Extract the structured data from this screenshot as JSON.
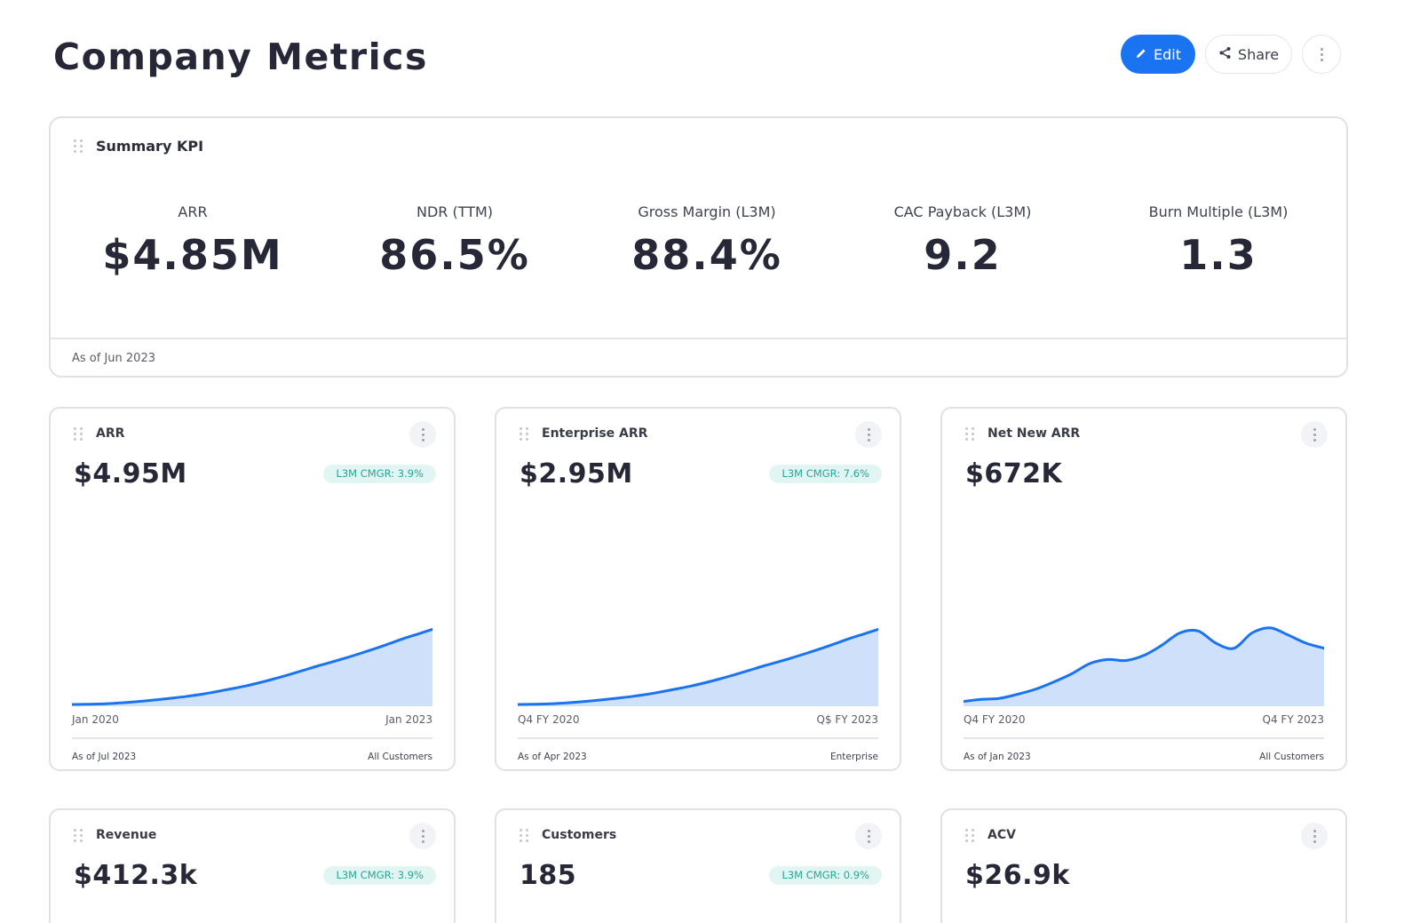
{
  "header": {
    "title": "Company Metrics",
    "edit_label": "Edit",
    "share_label": "Share"
  },
  "summary": {
    "title": "Summary KPI",
    "items": [
      {
        "label": "ARR",
        "value": "$4.85M"
      },
      {
        "label": "NDR (TTM)",
        "value": "86.5%"
      },
      {
        "label": "Gross Margin (L3M)",
        "value": "88.4%"
      },
      {
        "label": "CAC Payback (L3M)",
        "value": "9.2"
      },
      {
        "label": "Burn Multiple (L3M)",
        "value": "1.3"
      }
    ],
    "footer": "As of Jun 2023"
  },
  "cards": [
    {
      "title": "ARR",
      "value": "$4.95M",
      "badge": "L3M CMGR: 3.9%",
      "x_start": "Jan 2020",
      "x_end": "Jan 2023",
      "as_of": "As of Jul 2023",
      "segment": "All Customers"
    },
    {
      "title": "Enterprise ARR",
      "value": "$2.95M",
      "badge": "L3M CMGR: 7.6%",
      "x_start": "Q4 FY 2020",
      "x_end": "Q$ FY 2023",
      "as_of": "As of Apr 2023",
      "segment": "Enterprise"
    },
    {
      "title": "Net New ARR",
      "value": "$672K",
      "badge": "",
      "x_start": "Q4 FY 2020",
      "x_end": "Q4 FY 2023",
      "as_of": "As of Jan 2023",
      "segment": "All Customers"
    },
    {
      "title": "Revenue",
      "value": "$412.3k",
      "badge": "L3M CMGR: 3.9%"
    },
    {
      "title": "Customers",
      "value": "185",
      "badge": "L3M CMGR: 0.9%"
    },
    {
      "title": "ACV",
      "value": "$26.9k",
      "badge": ""
    }
  ],
  "chart_data": [
    {
      "type": "area",
      "series": [
        {
          "values": [
            0,
            0.2,
            0.5,
            1.2,
            2.2,
            3.4,
            4.8,
            6.3,
            8,
            10,
            12.5,
            15.2,
            18,
            21.3,
            25,
            29,
            33.2,
            37.5,
            41.5,
            45.6,
            50,
            54.6,
            59.5,
            64.5,
            69,
            73.5
          ]
        }
      ],
      "color": "#1a73f0",
      "fill": "#cfe0fb"
    },
    {
      "type": "area",
      "series": [
        {
          "values": [
            0,
            0.2,
            0.5,
            1.2,
            2.2,
            3.4,
            4.8,
            6.3,
            8,
            10,
            12.5,
            15.2,
            18,
            21.3,
            25,
            29,
            33.2,
            37.5,
            41.5,
            45.6,
            50,
            54.6,
            59.5,
            64.5,
            69,
            73.5
          ]
        }
      ],
      "color": "#1a73f0",
      "fill": "#cfe0fb"
    },
    {
      "type": "area",
      "series": [
        {
          "values": [
            3,
            5,
            6,
            10,
            15,
            22,
            30,
            40,
            44,
            43,
            48,
            58,
            70,
            72,
            60,
            55,
            70,
            75,
            68,
            60,
            55
          ]
        }
      ],
      "color": "#1a73f0",
      "fill": "#cfe0fb"
    }
  ]
}
